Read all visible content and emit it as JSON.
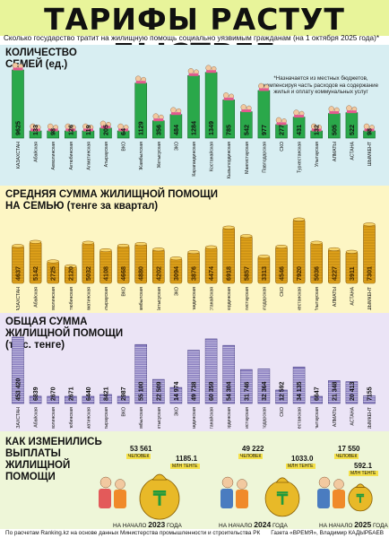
{
  "title": "ТАРИФЫ РАСТУТ БЫСТРЕЕ",
  "subtitle": "Сколько государство тратит на жилищную помощь социально уязвимым гражданам (на 1 октября 2025 года)*",
  "note": "*Назначается из местных бюджетов, компенсируя часть расходов на содержание жилья и оплату коммунальных услуг",
  "footer": {
    "left": "По расчетам Ranking.kz на основе данных Министерства промышленности и строительства РК",
    "right": "Газета «ВРЕМЯ», Владимир КАДЫРБАЕВ"
  },
  "colors": {
    "title_bg": "#e8f49a",
    "green": "#2aa84a",
    "gold": "#e0a21a",
    "purple": "#8a7fc0"
  },
  "regions": [
    "КАЗАХСТАН",
    "Абайская",
    "Акмолинская",
    "Актюбинская",
    "Алматинская",
    "Атырауская",
    "ВКО",
    "Жамбылская",
    "Жетысуская",
    "ЗКО",
    "Карагандинская",
    "Костанайская",
    "Кызылординская",
    "Мангистауская",
    "Павлодарская",
    "СКО",
    "Туркестанская",
    "Улытауская",
    "АЛМАТЫ",
    "АСТАНА",
    "ШЫМКЕНТ"
  ],
  "chart_data": [
    {
      "type": "bar",
      "title": "КОЛИЧЕСТВО СЕМЕЙ (ед.)",
      "categories": [
        "КАЗАХСТАН",
        "Абайская",
        "Акмолинская",
        "Актюбинская",
        "Алматинская",
        "Атырауская",
        "ВКО",
        "Жамбылская",
        "Жетысуская",
        "ЗКО",
        "Карагандинская",
        "Костанайская",
        "Кызылординская",
        "Мангистауская",
        "Павлодарская",
        "СКО",
        "Туркестанская",
        "Улытауская",
        "АЛМАТЫ",
        "АСТАНА",
        "ШЫМКЕНТ"
      ],
      "values": [
        9625,
        133,
        98,
        126,
        119,
        205,
        64,
        1129,
        356,
        484,
        1284,
        1349,
        785,
        542,
        977,
        277,
        431,
        132,
        505,
        522,
        98
      ],
      "labels": [
        "9625",
        "133",
        "98",
        "126",
        "119",
        "205",
        "64",
        "1129",
        "356",
        "484",
        "1284",
        "1349",
        "785",
        "542",
        "977",
        "277",
        "431",
        "132",
        "505",
        "522",
        "98"
      ]
    },
    {
      "type": "bar",
      "title": "СРЕДНЯЯ СУММА ЖИЛИЩНОЙ ПОМОЩИ НА СЕМЬЮ (тенге за квартал)",
      "categories": [
        "КАЗАХСТАН",
        "Абайская",
        "Акмолинская",
        "Актюбинская",
        "Алматинская",
        "Атырауская",
        "ВКО",
        "Жамбылская",
        "Жетысуская",
        "ЗКО",
        "Карагандинская",
        "Костанайская",
        "Кызылординская",
        "Мангистауская",
        "Павлодарская",
        "СКО",
        "Туркестанская",
        "Улытауская",
        "АЛМАТЫ",
        "АСТАНА",
        "ШЫМКЕНТ"
      ],
      "values": [
        4637,
        5142,
        2725,
        2120,
        5032,
        4108,
        4668,
        4880,
        4202,
        3094,
        3876,
        4474,
        6918,
        5857,
        3313,
        4546,
        7920,
        5036,
        4227,
        3911,
        7301
      ],
      "labels": [
        "4637",
        "5142",
        "2725",
        "2120",
        "5032",
        "4108",
        "4668",
        "4880",
        "4202",
        "3094",
        "3876",
        "4474",
        "6918",
        "5857",
        "3313",
        "4546",
        "7920",
        "5036",
        "4227",
        "3911",
        "7301"
      ]
    },
    {
      "type": "bar",
      "title": "ОБЩАЯ СУММА ЖИЛИЩНОЙ ПОМОЩИ (тыс. тенге)",
      "categories": [
        "КАЗАХСТАН",
        "Абайская",
        "Акмолинская",
        "Актюбинская",
        "Алматинская",
        "Атырауская",
        "ВКО",
        "Жамбылская",
        "Жетысуская",
        "ЗКО",
        "Карагандинская",
        "Костанайская",
        "Кызылординская",
        "Мангистауская",
        "Павлодарская",
        "СКО",
        "Туркестанская",
        "Улытауская",
        "АЛМАТЫ",
        "АСТАНА",
        "ШЫМКЕНТ"
      ],
      "values": [
        453420,
        6839,
        2670,
        2671,
        6440,
        8421,
        2987,
        55100,
        22509,
        14974,
        49738,
        60359,
        54304,
        31746,
        32364,
        12592,
        34135,
        6647,
        21348,
        20413,
        7155
      ],
      "labels": [
        "453 420",
        "6839",
        "2670",
        "2671",
        "6440",
        "8421",
        "2987",
        "55 100",
        "22 509",
        "14 974",
        "49 738",
        "60 359",
        "54 304",
        "31 746",
        "32 364",
        "12 592",
        "34 135",
        "6647",
        "21 348",
        "20 413",
        "7155"
      ]
    },
    {
      "type": "table",
      "title": "КАК ИЗМЕНИЛИСЬ ВЫПЛАТЫ ЖИЛИЩНОЙ ПОМОЩИ",
      "rows": [
        {
          "date_prefix": "НА НАЧАЛО",
          "year": "2023",
          "date_suffix": "ГОДА",
          "people": "53 561",
          "people_unit": "ЧЕЛОВЕК",
          "sum": "1185.1",
          "sum_unit": "МЛН ТЕНГЕ"
        },
        {
          "date_prefix": "НА НАЧАЛО",
          "year": "2024",
          "date_suffix": "ГОДА",
          "people": "49 222",
          "people_unit": "ЧЕЛОВЕК",
          "sum": "1033.0",
          "sum_unit": "МЛН ТЕНГЕ"
        },
        {
          "date_prefix": "НА НАЧАЛО",
          "year": "2025",
          "date_suffix": "ГОДА",
          "people": "17 550",
          "people_unit": "ЧЕЛОВЕК",
          "sum": "592.1",
          "sum_unit": "МЛН ТЕНГЕ"
        }
      ]
    }
  ]
}
